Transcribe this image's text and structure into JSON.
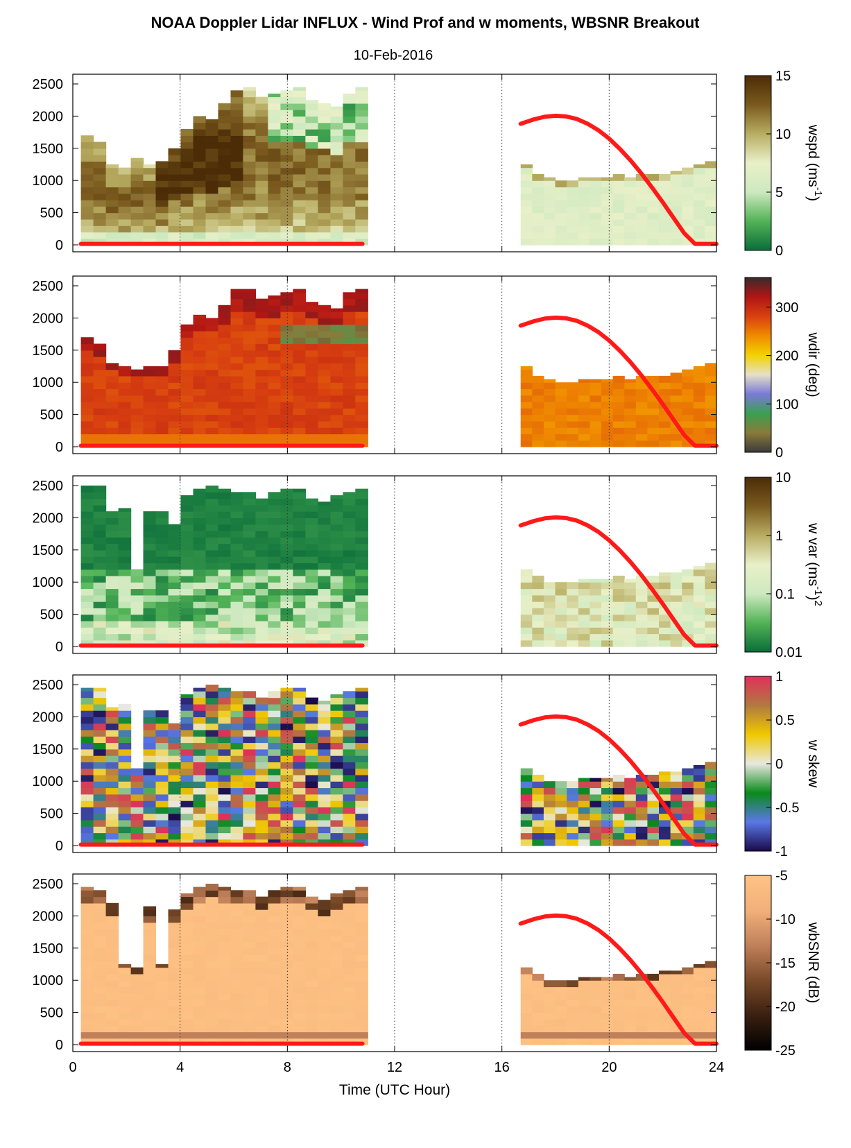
{
  "title": "NOAA Doppler Lidar INFLUX - Wind Prof and w moments, WBSNR Breakout",
  "date": "10-Feb-2016",
  "chart_data": {
    "type": "heatmap",
    "xlabel": "Time (UTC Hour)",
    "xlim": [
      0,
      24
    ],
    "xticks": [
      "0",
      "4",
      "8",
      "12",
      "16",
      "20",
      "24"
    ],
    "ylim": [
      0,
      2500
    ],
    "yticks": [
      "0",
      "500",
      "1000",
      "1500",
      "2000",
      "2500"
    ],
    "data_periods": [
      [
        0.3,
        11.0
      ],
      [
        16.7,
        24.0
      ]
    ],
    "red_curve": {
      "color": "#ff1a1a",
      "segments": [
        {
          "x": [
            0.3,
            10.8
          ],
          "y": [
            15,
            15
          ]
        },
        {
          "x": [
            16.7,
            17.2,
            17.6,
            18.0,
            18.4,
            18.8,
            19.2,
            19.6,
            20.0,
            20.4,
            20.8,
            21.2,
            21.6,
            22.0,
            22.4,
            22.8,
            23.2,
            23.5,
            24.0
          ],
          "y": [
            1880,
            1950,
            1990,
            2005,
            1995,
            1955,
            1880,
            1780,
            1650,
            1490,
            1310,
            1110,
            890,
            660,
            420,
            180,
            15,
            15,
            15
          ]
        }
      ]
    },
    "panels": [
      {
        "name": "wspd",
        "cbar_label": "wspd (ms",
        "cbar_label_sup": "-1",
        "cbar_label_tail": ")",
        "cbar_ticks": [
          "0",
          "5",
          "10",
          "15"
        ],
        "cbar_colors": [
          "#0a6d3a",
          "#52b356",
          "#cde9c0",
          "#e9f0c8",
          "#b8ad62",
          "#7a5a1e",
          "#4b2c06"
        ],
        "tops_morning": [
          1700,
          1600,
          1250,
          1200,
          1350,
          1250,
          1300,
          1500,
          1800,
          2000,
          1950,
          2200,
          2400,
          2450,
          2300,
          2350,
          2400,
          2450,
          2250,
          2200,
          2150,
          2350,
          2450
        ],
        "tops_afternoon": [
          1250,
          1100,
          1050,
          1000,
          1000,
          1050,
          1050,
          1050,
          1100,
          1050,
          1100,
          1100,
          1100,
          1150,
          1200,
          1250,
          1300
        ]
      },
      {
        "name": "wdir",
        "cbar_label": "wdir (deg)",
        "cbar_ticks": [
          "0",
          "100",
          "200",
          "300"
        ],
        "cbar_colors": [
          "#3a3a3a",
          "#8a7a3a",
          "#3aa050",
          "#7a7ad8",
          "#e6e0c8",
          "#f2d200",
          "#f08a00",
          "#d84010",
          "#b01515",
          "#3a2a2a"
        ],
        "tops_morning": [
          1700,
          1600,
          1300,
          1250,
          1200,
          1250,
          1250,
          1500,
          1900,
          2050,
          2000,
          2200,
          2450,
          2450,
          2300,
          2350,
          2400,
          2450,
          2250,
          2200,
          2150,
          2400,
          2450
        ],
        "tops_afternoon": [
          1250,
          1100,
          1050,
          1000,
          1000,
          1050,
          1050,
          1050,
          1100,
          1050,
          1100,
          1100,
          1100,
          1150,
          1200,
          1250,
          1300
        ]
      },
      {
        "name": "w var",
        "cbar_label": "w var (ms",
        "cbar_label_sup": "-1",
        "cbar_label_tail": ")",
        "cbar_label_sup2": "2",
        "cbar_ticks": [
          "0.01",
          "0.1",
          "1",
          "10"
        ],
        "cbar_colors": [
          "#0a6d3a",
          "#52b356",
          "#cde9c0",
          "#e9f0c8",
          "#b8ad62",
          "#7a5a1e",
          "#4b2c06"
        ],
        "tops_morning": [
          2500,
          2500,
          2100,
          2150,
          1200,
          2100,
          2100,
          1900,
          2350,
          2450,
          2500,
          2450,
          2400,
          2400,
          2300,
          2400,
          2450,
          2450,
          2300,
          2250,
          2350,
          2400,
          2450
        ],
        "tops_afternoon": [
          1200,
          1100,
          1000,
          1000,
          1000,
          1050,
          1050,
          1050,
          1100,
          1050,
          1100,
          1100,
          1150,
          1150,
          1200,
          1250,
          1300
        ]
      },
      {
        "name": "w skew",
        "cbar_label": "w skew",
        "cbar_ticks": [
          "-1",
          "-0.5",
          "0",
          "0.5",
          "1"
        ],
        "cbar_colors": [
          "#1a0a4a",
          "#5a78e6",
          "#0a8a1a",
          "#e8e8e0",
          "#f0c800",
          "#b07a40",
          "#e0305a"
        ],
        "tops_morning": [
          2450,
          2450,
          2150,
          2200,
          1200,
          2100,
          2100,
          1900,
          2350,
          2450,
          2500,
          2450,
          2400,
          2400,
          2300,
          2400,
          2450,
          2450,
          2300,
          2250,
          2350,
          2400,
          2450
        ],
        "tops_afternoon": [
          1200,
          1100,
          1000,
          1000,
          1000,
          1050,
          1050,
          1050,
          1100,
          1050,
          1100,
          1100,
          1150,
          1150,
          1200,
          1250,
          1300
        ]
      },
      {
        "name": "wbSNR",
        "cbar_label": "wbSNR (dB)",
        "cbar_ticks": [
          "-25",
          "-20",
          "-15",
          "-10",
          "-5"
        ],
        "cbar_colors": [
          "#000000",
          "#3a2010",
          "#7a4a28",
          "#c0805a",
          "#f2b07a",
          "#ffc384"
        ],
        "tops_morning": [
          2450,
          2400,
          2200,
          1250,
          1200,
          2150,
          1250,
          2100,
          2350,
          2450,
          2500,
          2450,
          2400,
          2400,
          2300,
          2400,
          2450,
          2450,
          2300,
          2250,
          2350,
          2400,
          2450
        ],
        "tops_afternoon": [
          1200,
          1100,
          1000,
          1000,
          1000,
          1050,
          1050,
          1050,
          1100,
          1050,
          1100,
          1100,
          1150,
          1150,
          1200,
          1250,
          1300
        ]
      }
    ]
  }
}
